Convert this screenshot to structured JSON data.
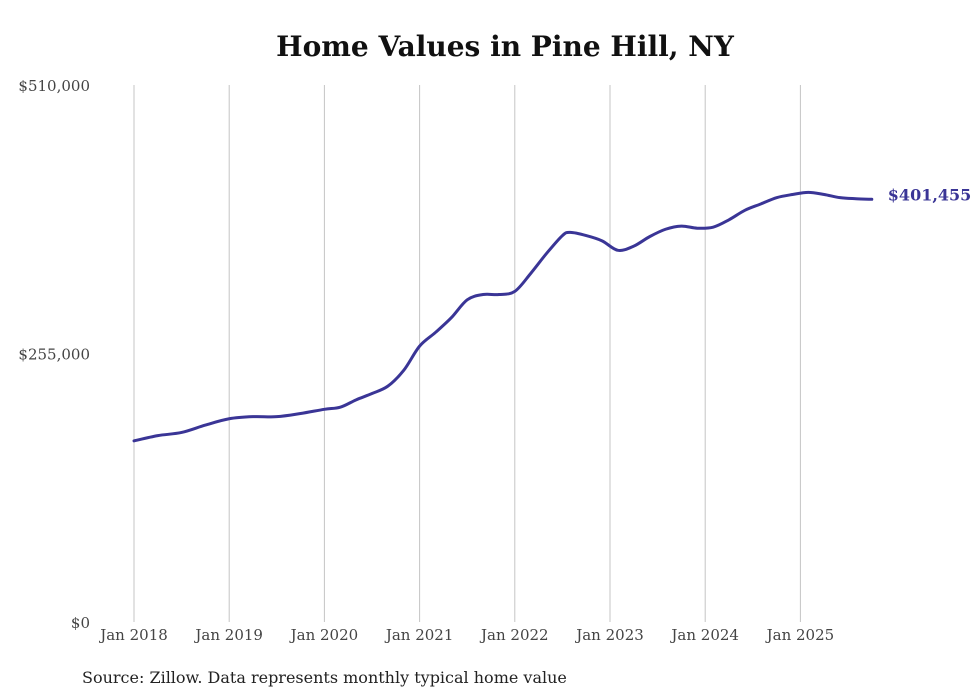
{
  "chart_data": {
    "type": "line",
    "title": "Home Values in Pine Hill, NY",
    "xlabel": "",
    "ylabel": "",
    "ylim": [
      0,
      510000
    ],
    "y_ticks": [
      0,
      255000,
      510000
    ],
    "y_tick_labels": [
      "$0",
      "$255,000",
      "$510,000"
    ],
    "x_ticks": [
      "2018-01",
      "2019-01",
      "2020-01",
      "2021-01",
      "2022-01",
      "2023-01",
      "2024-01",
      "2025-01"
    ],
    "x_tick_labels": [
      "Jan 2018",
      "Jan 2019",
      "Jan 2020",
      "Jan 2021",
      "Jan 2022",
      "Jan 2023",
      "Jan 2024",
      "Jan 2025"
    ],
    "grid": "vertical",
    "line_color": "#3a3596",
    "end_label": "$401,455",
    "source": "Source: Zillow. Data represents monthly typical home value",
    "series": [
      {
        "name": "Typical home value",
        "x": [
          "2018-01",
          "2018-04",
          "2018-07",
          "2018-10",
          "2019-01",
          "2019-04",
          "2019-07",
          "2019-10",
          "2020-01",
          "2020-03",
          "2020-05",
          "2020-07",
          "2020-09",
          "2020-11",
          "2021-01",
          "2021-03",
          "2021-05",
          "2021-07",
          "2021-09",
          "2021-11",
          "2022-01",
          "2022-03",
          "2022-05",
          "2022-07",
          "2022-08",
          "2022-10",
          "2022-12",
          "2023-02",
          "2023-04",
          "2023-06",
          "2023-08",
          "2023-10",
          "2023-12",
          "2024-02",
          "2024-04",
          "2024-06",
          "2024-08",
          "2024-10",
          "2024-12",
          "2025-02",
          "2025-04",
          "2025-06",
          "2025-08",
          "2025-10"
        ],
        "values": [
          172000,
          177000,
          180000,
          187000,
          193000,
          195000,
          195000,
          198000,
          202000,
          204000,
          211000,
          217000,
          224000,
          239000,
          262000,
          275000,
          289000,
          306000,
          311000,
          311000,
          314000,
          331000,
          350000,
          367000,
          370000,
          367000,
          362000,
          353000,
          357000,
          366000,
          373000,
          376000,
          374000,
          375000,
          382000,
          391000,
          397000,
          403000,
          406000,
          408000,
          406000,
          403000,
          402000,
          401455
        ]
      }
    ]
  }
}
